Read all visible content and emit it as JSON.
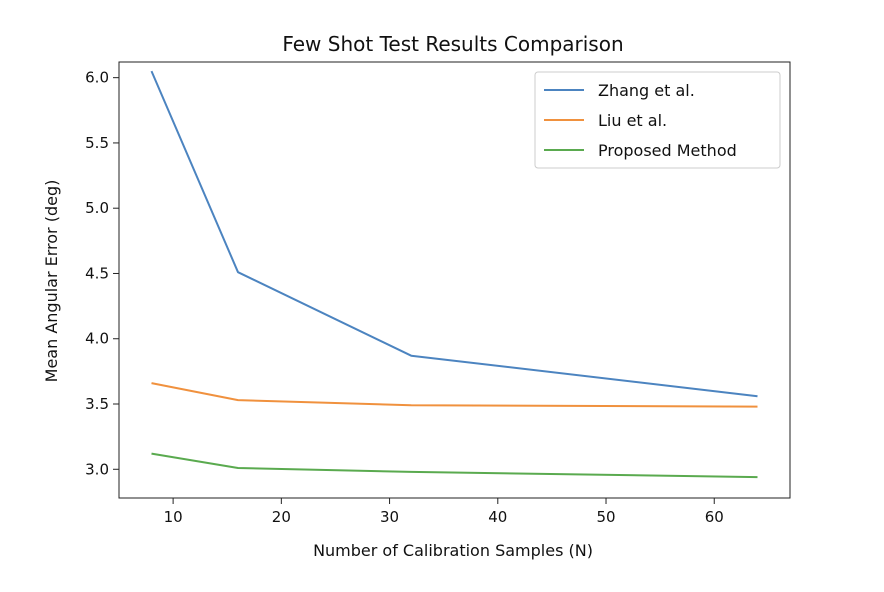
{
  "chart_data": {
    "type": "line",
    "title": "Few Shot Test Results Comparison",
    "xlabel": "Number of Calibration Samples (N)",
    "ylabel": "Mean Angular Error (deg)",
    "x": [
      8,
      16,
      32,
      64
    ],
    "xlim": [
      5,
      67
    ],
    "ylim": [
      2.78,
      6.12
    ],
    "xticks": [
      10,
      20,
      30,
      40,
      50,
      60
    ],
    "yticks": [
      3.0,
      3.5,
      4.0,
      4.5,
      5.0,
      5.5,
      6.0
    ],
    "xtick_labels": [
      "10",
      "20",
      "30",
      "40",
      "50",
      "60"
    ],
    "ytick_labels": [
      "3.0",
      "3.5",
      "4.0",
      "4.5",
      "5.0",
      "5.5",
      "6.0"
    ],
    "grid": false,
    "legend_position": "top-right",
    "series": [
      {
        "name": "Zhang et al.",
        "color": "#4c84c0",
        "values": [
          6.05,
          4.51,
          3.87,
          3.56
        ]
      },
      {
        "name": "Liu et al.",
        "color": "#f0913e",
        "values": [
          3.66,
          3.53,
          3.49,
          3.48
        ]
      },
      {
        "name": "Proposed Method",
        "color": "#5aaa4f",
        "values": [
          3.12,
          3.01,
          2.98,
          2.94
        ]
      }
    ]
  }
}
